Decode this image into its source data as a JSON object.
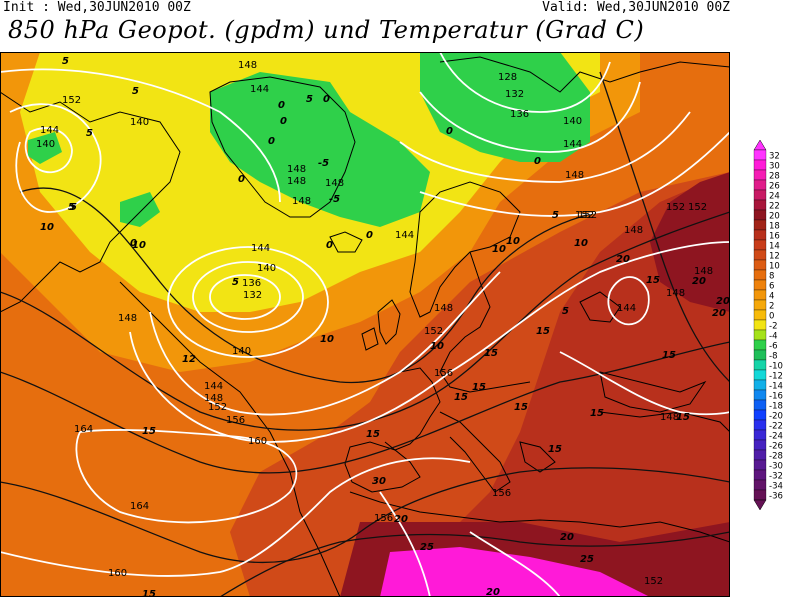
{
  "header": {
    "init": "Init : Wed,30JUN2010 00Z",
    "valid": "Valid: Wed,30JUN2010 00Z",
    "title": "850 hPa Geopot. (gpdm) und Temperatur (Grad C)"
  },
  "colors": {
    "deep_red": "#8e1520",
    "red": "#b8301c",
    "red_orange": "#d04a18",
    "orange": "#e66e0e",
    "light_orange": "#f2960a",
    "amber": "#f7bb0a",
    "yellow": "#f2e414",
    "green": "#2fd04a",
    "magenta": "#ff1ad8",
    "pink": "#ff66ee"
  },
  "geopotential_labels": [
    {
      "text": "148"
    },
    {
      "text": "144"
    },
    {
      "text": "128"
    },
    {
      "text": "132"
    },
    {
      "text": "136"
    },
    {
      "text": "140"
    },
    {
      "text": "152"
    },
    {
      "text": "144"
    },
    {
      "text": "140"
    },
    {
      "text": "144"
    },
    {
      "text": "140"
    },
    {
      "text": "148"
    },
    {
      "text": "148"
    },
    {
      "text": "148"
    },
    {
      "text": "148"
    },
    {
      "text": "144"
    },
    {
      "text": "144"
    },
    {
      "text": "140"
    },
    {
      "text": "136"
    },
    {
      "text": "132"
    },
    {
      "text": "148"
    },
    {
      "text": "148"
    },
    {
      "text": "152"
    },
    {
      "text": "140"
    },
    {
      "text": "144"
    },
    {
      "text": "148"
    },
    {
      "text": "152"
    },
    {
      "text": "156"
    },
    {
      "text": "156"
    },
    {
      "text": "160"
    },
    {
      "text": "164"
    },
    {
      "text": "164"
    },
    {
      "text": "160"
    },
    {
      "text": "156"
    },
    {
      "text": "156"
    },
    {
      "text": "152"
    },
    {
      "text": "152"
    },
    {
      "text": "152"
    },
    {
      "text": "152"
    },
    {
      "text": "148"
    },
    {
      "text": "148"
    },
    {
      "text": "148"
    },
    {
      "text": "144"
    },
    {
      "text": "148"
    },
    {
      "text": "148"
    },
    {
      "text": "152"
    }
  ],
  "temperature_labels": [
    {
      "text": "5"
    },
    {
      "text": "5"
    },
    {
      "text": "5"
    },
    {
      "text": "0"
    },
    {
      "text": "5"
    },
    {
      "text": "0"
    },
    {
      "text": "0"
    },
    {
      "text": "-5"
    },
    {
      "text": "0"
    },
    {
      "text": "0"
    },
    {
      "text": "10"
    },
    {
      "text": "5"
    },
    {
      "text": "0"
    },
    {
      "text": "-5"
    },
    {
      "text": "0"
    },
    {
      "text": "0"
    },
    {
      "text": "0"
    },
    {
      "text": "0"
    },
    {
      "text": "5"
    },
    {
      "text": "10"
    },
    {
      "text": "10"
    },
    {
      "text": "10"
    },
    {
      "text": "5"
    },
    {
      "text": "5"
    },
    {
      "text": "10"
    },
    {
      "text": "10"
    },
    {
      "text": "15"
    },
    {
      "text": "15"
    },
    {
      "text": "15"
    },
    {
      "text": "15"
    },
    {
      "text": "15"
    },
    {
      "text": "15"
    },
    {
      "text": "15"
    },
    {
      "text": "15"
    },
    {
      "text": "15"
    },
    {
      "text": "15"
    },
    {
      "text": "15"
    },
    {
      "text": "20"
    },
    {
      "text": "20"
    },
    {
      "text": "20"
    },
    {
      "text": "20"
    },
    {
      "text": "20"
    },
    {
      "text": "25"
    },
    {
      "text": "25"
    },
    {
      "text": "30"
    },
    {
      "text": "15"
    },
    {
      "text": "20"
    },
    {
      "text": "15"
    },
    {
      "text": "20"
    },
    {
      "text": "10"
    },
    {
      "text": "5"
    },
    {
      "text": "12"
    }
  ],
  "legend": {
    "items": [
      {
        "label": "32",
        "color": "#ff33ff"
      },
      {
        "label": "30",
        "color": "#ff1ad8"
      },
      {
        "label": "28",
        "color": "#f51cb4"
      },
      {
        "label": "26",
        "color": "#e01c8a"
      },
      {
        "label": "24",
        "color": "#c81a64"
      },
      {
        "label": "22",
        "color": "#a8163a"
      },
      {
        "label": "20",
        "color": "#8e1520"
      },
      {
        "label": "18",
        "color": "#a22418"
      },
      {
        "label": "16",
        "color": "#b8301c"
      },
      {
        "label": "14",
        "color": "#c83c1a"
      },
      {
        "label": "12",
        "color": "#d04a18"
      },
      {
        "label": "10",
        "color": "#dc5c14"
      },
      {
        "label": "8",
        "color": "#e66e0e"
      },
      {
        "label": "6",
        "color": "#ee820c"
      },
      {
        "label": "4",
        "color": "#f2960a"
      },
      {
        "label": "2",
        "color": "#f5a80a"
      },
      {
        "label": "0",
        "color": "#f7bb0a"
      },
      {
        "label": "-2",
        "color": "#f2e414"
      },
      {
        "label": "-4",
        "color": "#a5e21a"
      },
      {
        "label": "-6",
        "color": "#2fd04a"
      },
      {
        "label": "-8",
        "color": "#1fbf5a"
      },
      {
        "label": "-10",
        "color": "#16d4a8"
      },
      {
        "label": "-12",
        "color": "#14d8d8"
      },
      {
        "label": "-14",
        "color": "#12b0e8"
      },
      {
        "label": "-16",
        "color": "#1088f0"
      },
      {
        "label": "-18",
        "color": "#0e60f4"
      },
      {
        "label": "-20",
        "color": "#1040ff"
      },
      {
        "label": "-22",
        "color": "#2a30ee"
      },
      {
        "label": "-24",
        "color": "#3a28d6"
      },
      {
        "label": "-26",
        "color": "#4622c0"
      },
      {
        "label": "-28",
        "color": "#501ea8"
      },
      {
        "label": "-30",
        "color": "#581a92"
      },
      {
        "label": "-32",
        "color": "#5e167e"
      },
      {
        "label": "-34",
        "color": "#621468"
      },
      {
        "label": "-36",
        "color": "#651255"
      }
    ]
  }
}
